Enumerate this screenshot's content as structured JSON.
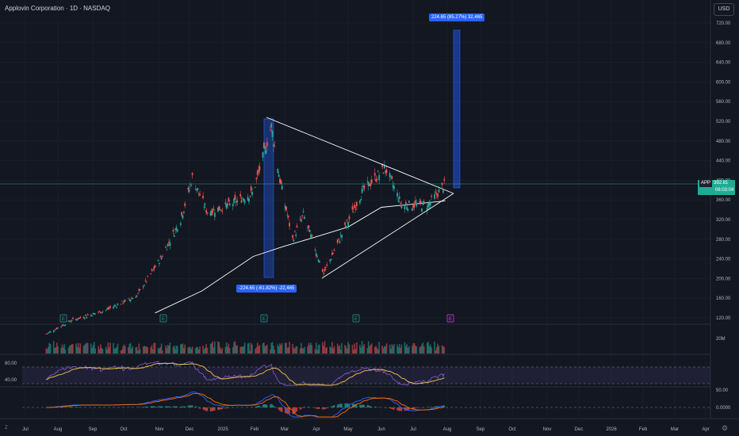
{
  "header": {
    "title": "Applovin Corporation · 1D · NASDAQ",
    "currency": "USD"
  },
  "price_axis": {
    "ticks": [
      "720.00",
      "680.00",
      "640.00",
      "600.00",
      "560.00",
      "520.00",
      "480.00",
      "440.00",
      "400.00",
      "360.00",
      "320.00",
      "280.00",
      "240.00",
      "200.00",
      "160.00",
      "120.00"
    ],
    "current_symbol": "APP",
    "current_price": "392.81",
    "countdown": "06:03:04"
  },
  "volume_axis": {
    "ticks": [
      "20M"
    ]
  },
  "rsi_axis": {
    "ticks": [
      "80.00",
      "40.00"
    ]
  },
  "macd_axis": {
    "ticks": [
      "50.00",
      "0.0000"
    ]
  },
  "time_axis": {
    "ticks": [
      "Jul",
      "Aug",
      "Sep",
      "Oct",
      "Nov",
      "Dec",
      "2025",
      "Feb",
      "Mar",
      "Apr",
      "May",
      "Jun",
      "Jul",
      "Aug",
      "Sep",
      "Oct",
      "Nov",
      "Dec",
      "2026",
      "Feb",
      "Mar",
      "Apr"
    ]
  },
  "measurements": {
    "down": "-224.65 (-61.82%) -22,465",
    "up": "224.65 (85.27%) 32,465"
  },
  "earnings_markers": [
    "E",
    "E",
    "E",
    "E",
    "E"
  ],
  "bottom": {
    "zoom_label": "Z"
  },
  "colors": {
    "bg": "#131722",
    "up": "#26a69a",
    "down": "#ef5350",
    "accent": "#2962ff",
    "rsi_line": "#7e57c2",
    "rsi_ma": "#f7c948",
    "macd_line": "#2962ff",
    "signal_line": "#ff6d00",
    "current": "#22ab94"
  },
  "chart_data": [
    {
      "type": "candlestick",
      "title": "Applovin Corporation · 1D · NASDAQ",
      "ylim": [
        100,
        740
      ],
      "close_path": [
        {
          "date": "2024-07-20",
          "close": 85
        },
        {
          "date": "2024-08-15",
          "close": 115
        },
        {
          "date": "2024-09-15",
          "close": 135
        },
        {
          "date": "2024-10-15",
          "close": 165
        },
        {
          "date": "2024-11-06",
          "close": 240
        },
        {
          "date": "2024-11-25",
          "close": 320
        },
        {
          "date": "2024-12-06",
          "close": 405
        },
        {
          "date": "2024-12-20",
          "close": 335
        },
        {
          "date": "2025-01-10",
          "close": 350
        },
        {
          "date": "2025-02-01",
          "close": 375
        },
        {
          "date": "2025-02-18",
          "close": 510
        },
        {
          "date": "2025-02-26",
          "close": 400
        },
        {
          "date": "2025-03-10",
          "close": 280
        },
        {
          "date": "2025-03-20",
          "close": 330
        },
        {
          "date": "2025-04-08",
          "close": 210
        },
        {
          "date": "2025-04-25",
          "close": 290
        },
        {
          "date": "2025-05-15",
          "close": 380
        },
        {
          "date": "2025-06-05",
          "close": 425
        },
        {
          "date": "2025-06-20",
          "close": 350
        },
        {
          "date": "2025-07-15",
          "close": 350
        },
        {
          "date": "2025-07-31",
          "close": 392.81
        }
      ],
      "moving_average": [
        {
          "date": "2024-11-01",
          "value": 130
        },
        {
          "date": "2024-12-15",
          "value": 175
        },
        {
          "date": "2025-02-01",
          "value": 245
        },
        {
          "date": "2025-03-01",
          "value": 265
        },
        {
          "date": "2025-04-01",
          "value": 285
        },
        {
          "date": "2025-05-01",
          "value": 305
        },
        {
          "date": "2025-06-01",
          "value": 345
        },
        {
          "date": "2025-07-31",
          "value": 358
        }
      ],
      "triangle": {
        "upper": [
          {
            "date": "2025-02-18",
            "price": 525
          },
          {
            "date": "2025-08-05",
            "price": 372
          }
        ],
        "lower": [
          {
            "date": "2025-04-08",
            "price": 202
          },
          {
            "date": "2025-08-05",
            "price": 372
          }
        ]
      },
      "current_price": 392.81
    },
    {
      "type": "bar",
      "name": "Volume",
      "ylabel": "20M"
    },
    {
      "type": "line",
      "name": "RSI",
      "levels": [
        80,
        40
      ]
    },
    {
      "type": "line",
      "name": "MACD",
      "levels": [
        50,
        0
      ]
    }
  ]
}
